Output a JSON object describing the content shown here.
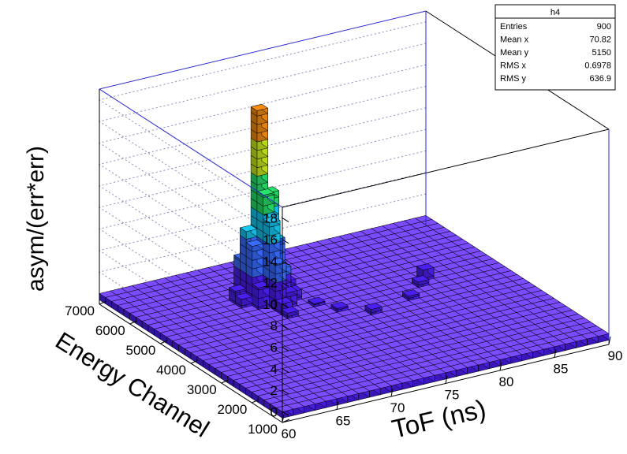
{
  "chart_data": {
    "type": "lego3d",
    "title": "",
    "xlabel": "ToF (ns)",
    "ylabel": "Energy Channel",
    "zlabel": "asym/(err*err)",
    "xlim": [
      60,
      90
    ],
    "ylim": [
      1000,
      7000
    ],
    "zlim": [
      -1,
      19
    ],
    "x_ticks": [
      60,
      65,
      70,
      75,
      80,
      85,
      90
    ],
    "y_ticks": [
      1000,
      2000,
      3000,
      4000,
      5000,
      6000,
      7000
    ],
    "z_ticks": [
      0,
      2,
      4,
      6,
      8,
      10,
      12,
      14,
      16,
      18
    ],
    "bins": {
      "nx": 30,
      "ny": 30
    },
    "grid": true,
    "colormap": [
      "#4b1ef0",
      "#3a6cff",
      "#16c8f2",
      "#28e06c",
      "#c8e81c",
      "#f58c10",
      "#d2140f"
    ],
    "peaks": [
      {
        "x": 70.5,
        "y": 5500,
        "z": 17.5
      },
      {
        "x": 70.5,
        "y": 5300,
        "z": 10.0
      },
      {
        "x": 71.5,
        "y": 5500,
        "z": 9.6
      },
      {
        "x": 70.5,
        "y": 5100,
        "z": 7.8
      },
      {
        "x": 69.5,
        "y": 5500,
        "z": 6.5
      },
      {
        "x": 69.5,
        "y": 5300,
        "z": 5.5
      },
      {
        "x": 71.5,
        "y": 5300,
        "z": 5.6
      },
      {
        "x": 70.5,
        "y": 4900,
        "z": 4.3
      },
      {
        "x": 69.5,
        "y": 5700,
        "z": 3.6
      },
      {
        "x": 71.5,
        "y": 5100,
        "z": 3.3
      },
      {
        "x": 70.5,
        "y": 5700,
        "z": 3.0
      },
      {
        "x": 72.5,
        "y": 5300,
        "z": 1.5
      },
      {
        "x": 68.5,
        "y": 5500,
        "z": 1.2
      },
      {
        "x": 69.5,
        "y": 5100,
        "z": 2.0
      },
      {
        "x": 71.5,
        "y": 4900,
        "z": 1.4
      },
      {
        "x": 68.5,
        "y": 5300,
        "z": 0.8
      },
      {
        "x": 70.5,
        "y": 4700,
        "z": 1.0
      },
      {
        "x": 72.5,
        "y": 5100,
        "z": 0.9
      },
      {
        "x": 70.5,
        "y": 4500,
        "z": 0.5
      },
      {
        "x": 73.5,
        "y": 4700,
        "z": 0.3
      },
      {
        "x": 74.5,
        "y": 4300,
        "z": 0.35
      },
      {
        "x": 76.5,
        "y": 3900,
        "z": 0.5
      },
      {
        "x": 80.5,
        "y": 4100,
        "z": 0.4
      },
      {
        "x": 82.5,
        "y": 4500,
        "z": 0.5
      },
      {
        "x": 83.5,
        "y": 4700,
        "z": 1.0
      }
    ],
    "stats": {
      "name": "h4",
      "rows": [
        {
          "label": "Entries",
          "value": "900"
        },
        {
          "label": "Mean x",
          "value": "70.82"
        },
        {
          "label": "Mean y",
          "value": "5150"
        },
        {
          "label": "RMS x",
          "value": "0.6978"
        },
        {
          "label": "RMS y",
          "value": "636.9"
        }
      ]
    }
  }
}
